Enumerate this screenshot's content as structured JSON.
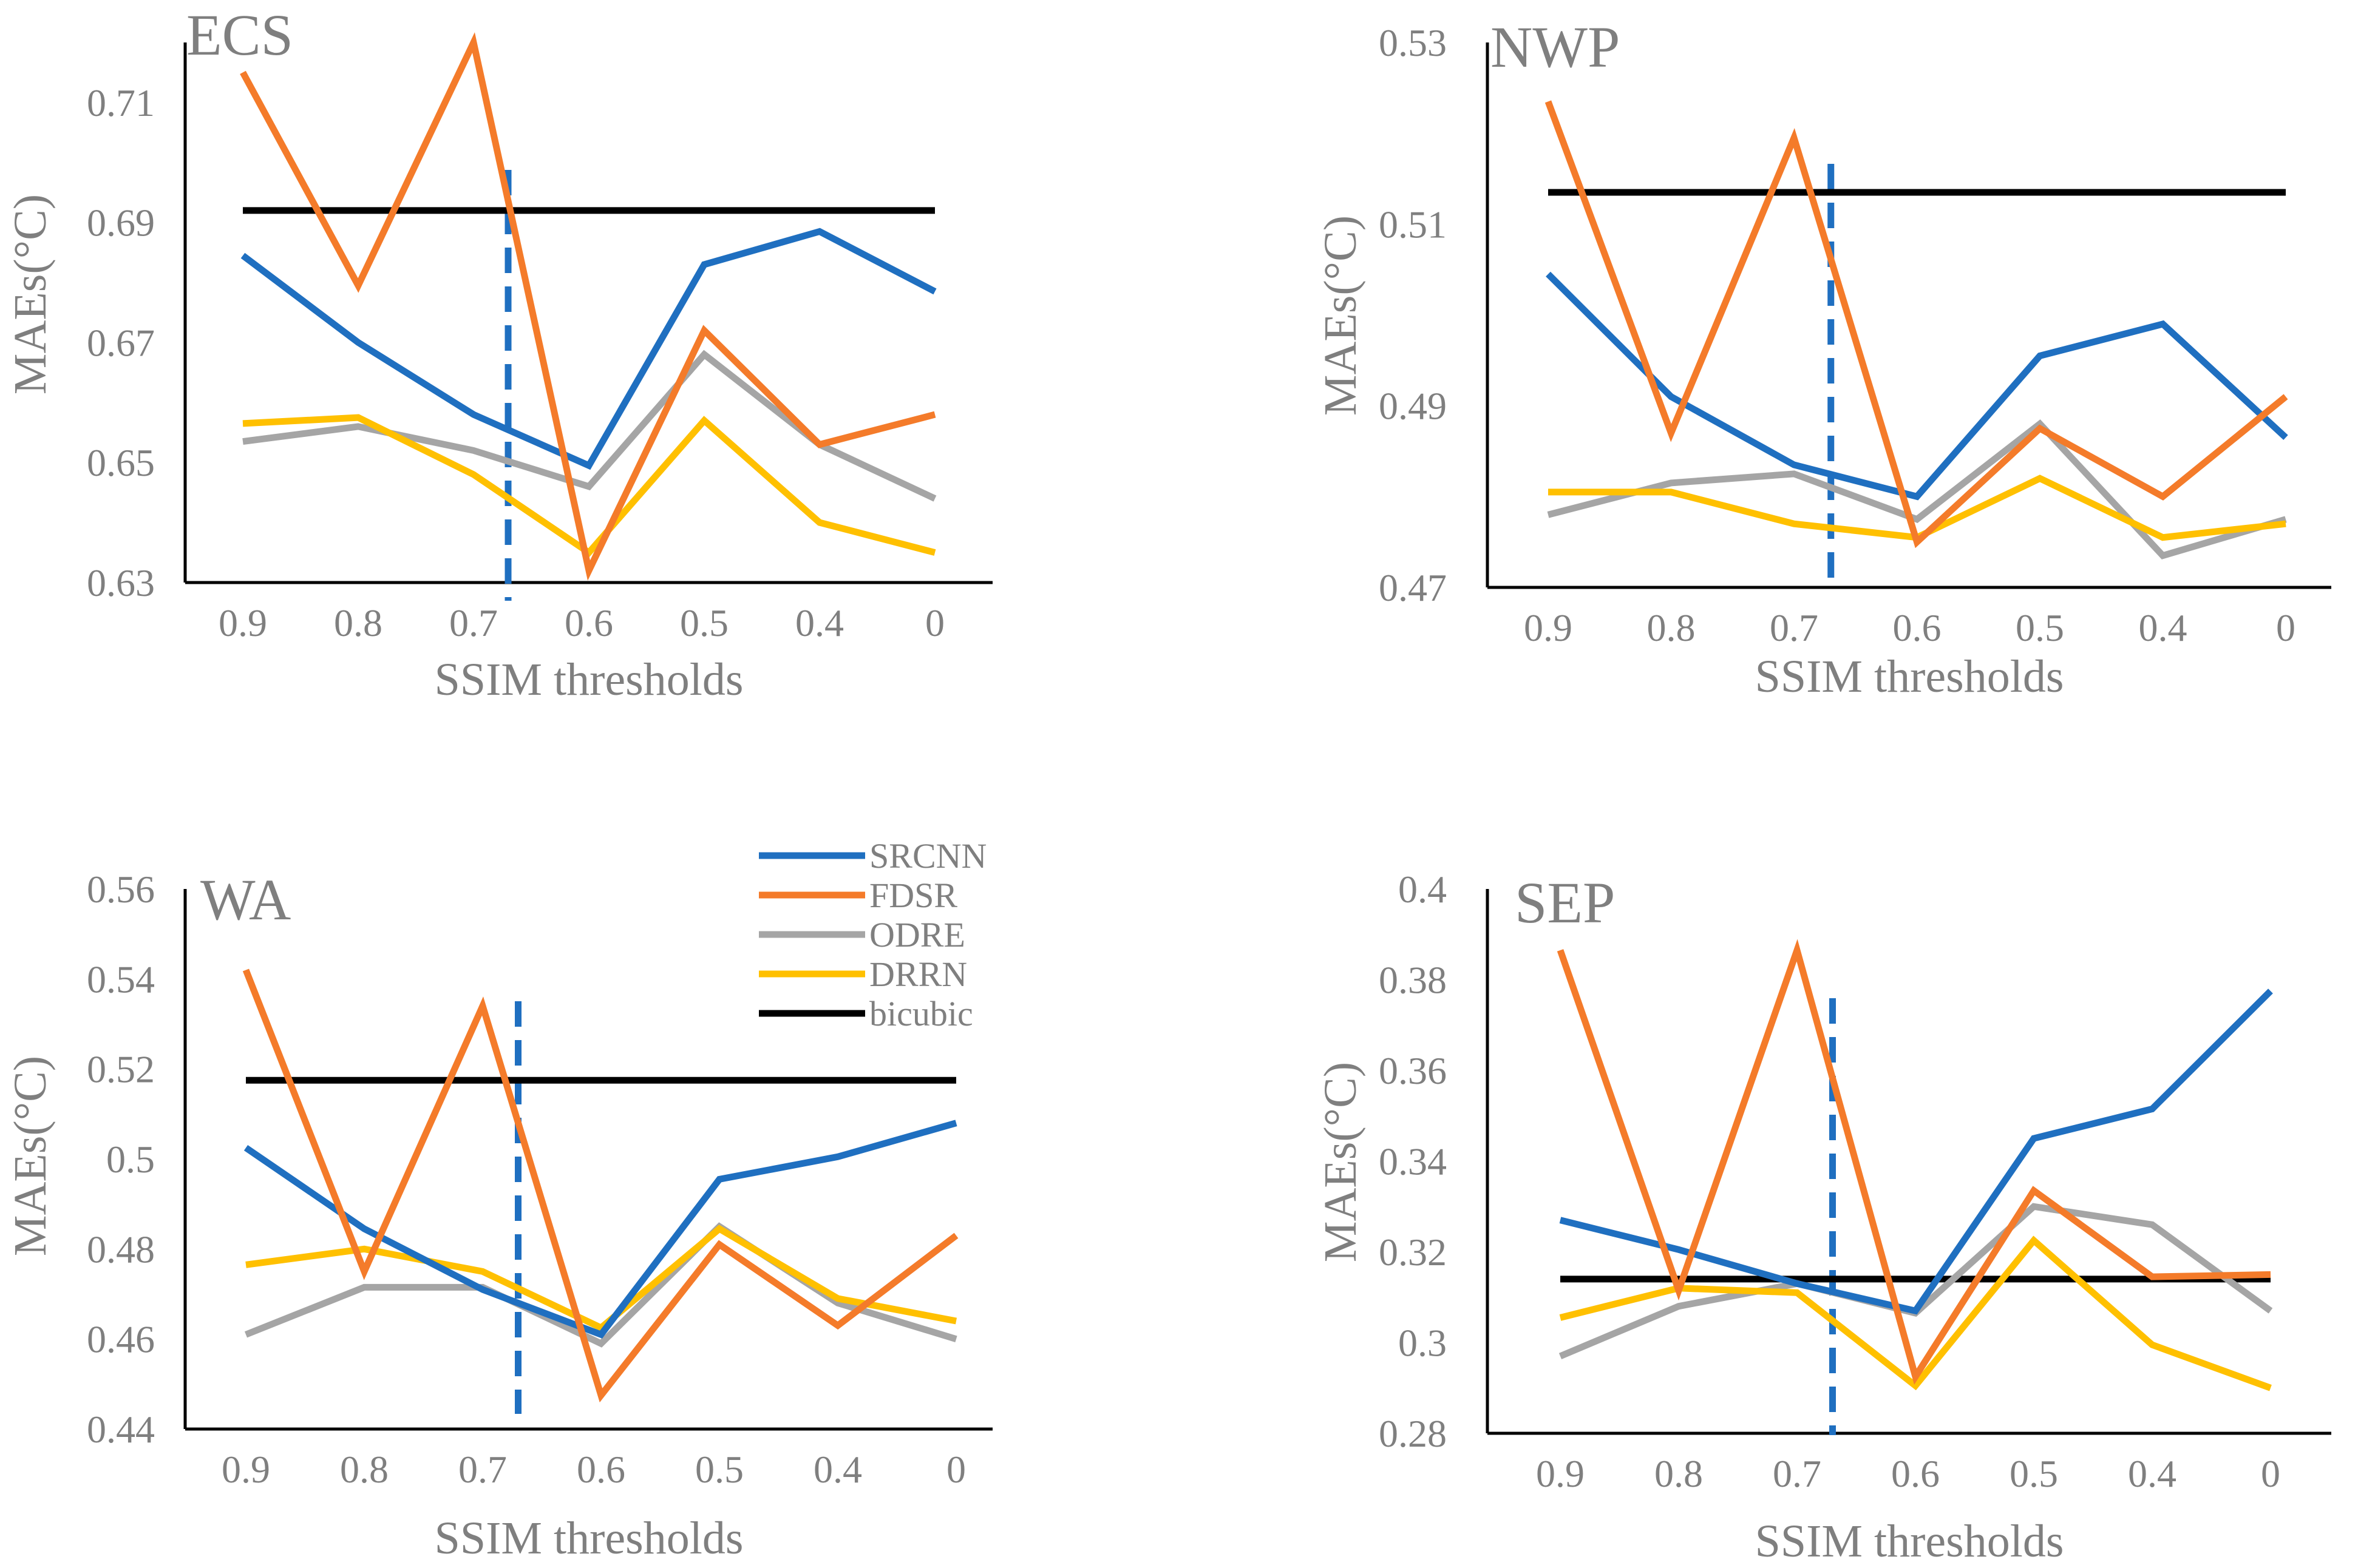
{
  "chart_data": [
    {
      "type": "line",
      "title": "ECS",
      "xlabel": "SSIM thresholds",
      "ylabel": "MAEs(°C)",
      "categories": [
        "0.9",
        "0.8",
        "0.7",
        "0.6",
        "0.5",
        "0.4",
        "0"
      ],
      "ylim": [
        0.63,
        0.72
      ],
      "yticks": [
        "0.63",
        "0.65",
        "0.67",
        "0.69",
        "0.71"
      ],
      "marker_x": 2.3,
      "series": [
        {
          "name": "SRCNN",
          "color": "#1f6fc0",
          "values": [
            0.6845,
            0.67,
            0.658,
            0.6495,
            0.683,
            0.6885,
            0.6785
          ]
        },
        {
          "name": "FDSR",
          "color": "#f47b2a",
          "values": [
            0.715,
            0.6795,
            0.72,
            0.632,
            0.672,
            0.653,
            0.658
          ]
        },
        {
          "name": "ODRE",
          "color": "#a5a5a5",
          "values": [
            0.6535,
            0.656,
            0.652,
            0.646,
            0.668,
            0.653,
            0.644
          ]
        },
        {
          "name": "DRRN",
          "color": "#ffc000",
          "values": [
            0.6565,
            0.6575,
            0.648,
            0.635,
            0.657,
            0.64,
            0.635
          ]
        },
        {
          "name": "bicubic",
          "color": "#000000",
          "values": [
            0.692,
            0.692,
            0.692,
            0.692,
            0.692,
            0.692,
            0.692
          ]
        }
      ]
    },
    {
      "type": "line",
      "title": "NWP",
      "xlabel": "SSIM thresholds",
      "ylabel": "MAEs(°C)",
      "categories": [
        "0.9",
        "0.8",
        "0.7",
        "0.6",
        "0.5",
        "0.4",
        "0"
      ],
      "ylim": [
        0.47,
        0.53
      ],
      "yticks": [
        "0.47",
        "0.49",
        "0.51",
        "0.53"
      ],
      "marker_x": 2.3,
      "series": [
        {
          "name": "SRCNN",
          "color": "#1f6fc0",
          "values": [
            0.5045,
            0.491,
            0.4835,
            0.48,
            0.4955,
            0.499,
            0.4865
          ]
        },
        {
          "name": "FDSR",
          "color": "#f47b2a",
          "values": [
            0.5235,
            0.487,
            0.5195,
            0.475,
            0.4875,
            0.48,
            0.491
          ]
        },
        {
          "name": "ODRE",
          "color": "#a5a5a5",
          "values": [
            0.478,
            0.4815,
            0.4825,
            0.4775,
            0.488,
            0.4735,
            0.4775
          ]
        },
        {
          "name": "DRRN",
          "color": "#ffc000",
          "values": [
            0.4805,
            0.4805,
            0.477,
            0.4755,
            0.482,
            0.4755,
            0.477
          ]
        },
        {
          "name": "bicubic",
          "color": "#000000",
          "values": [
            0.5135,
            0.5135,
            0.5135,
            0.5135,
            0.5135,
            0.5135,
            0.5135
          ]
        }
      ]
    },
    {
      "type": "line",
      "title": "WA",
      "xlabel": "SSIM thresholds",
      "ylabel": "MAEs(°C)",
      "categories": [
        "0.9",
        "0.8",
        "0.7",
        "0.6",
        "0.5",
        "0.4",
        "0"
      ],
      "ylim": [
        0.44,
        0.56
      ],
      "yticks": [
        "0.44",
        "0.46",
        "0.48",
        "0.5",
        "0.52",
        "0.54",
        "0.56"
      ],
      "marker_x": 2.3,
      "series": [
        {
          "name": "SRCNN",
          "color": "#1f6fc0",
          "values": [
            0.5025,
            0.4845,
            0.471,
            0.461,
            0.4955,
            0.5005,
            0.508
          ]
        },
        {
          "name": "FDSR",
          "color": "#f47b2a",
          "values": [
            0.542,
            0.475,
            0.534,
            0.4475,
            0.481,
            0.463,
            0.483
          ]
        },
        {
          "name": "ODRE",
          "color": "#a5a5a5",
          "values": [
            0.461,
            0.4715,
            0.4715,
            0.459,
            0.485,
            0.468,
            0.46
          ]
        },
        {
          "name": "DRRN",
          "color": "#ffc000",
          "values": [
            0.4765,
            0.48,
            0.475,
            0.4625,
            0.4845,
            0.469,
            0.464
          ]
        },
        {
          "name": "bicubic",
          "color": "#000000",
          "values": [
            0.5175,
            0.5175,
            0.5175,
            0.5175,
            0.5175,
            0.5175,
            0.5175
          ]
        }
      ]
    },
    {
      "type": "line",
      "title": "SEP",
      "xlabel": "SSIM thresholds",
      "ylabel": "MAEs(°C)",
      "categories": [
        "0.9",
        "0.8",
        "0.7",
        "0.6",
        "0.5",
        "0.4",
        "0"
      ],
      "ylim": [
        0.28,
        0.4
      ],
      "yticks": [
        "0.28",
        "0.3",
        "0.32",
        "0.34",
        "0.36",
        "0.38",
        "0.4"
      ],
      "marker_x": 2.3,
      "series": [
        {
          "name": "SRCNN",
          "color": "#1f6fc0",
          "values": [
            0.327,
            0.3205,
            0.313,
            0.307,
            0.345,
            0.3515,
            0.3775
          ]
        },
        {
          "name": "FDSR",
          "color": "#f47b2a",
          "values": [
            0.3865,
            0.3115,
            0.3865,
            0.2925,
            0.3335,
            0.3145,
            0.315
          ]
        },
        {
          "name": "ODRE",
          "color": "#a5a5a5",
          "values": [
            0.297,
            0.308,
            0.313,
            0.3065,
            0.33,
            0.326,
            0.307
          ]
        },
        {
          "name": "DRRN",
          "color": "#ffc000",
          "values": [
            0.3055,
            0.312,
            0.311,
            0.2905,
            0.3225,
            0.2995,
            0.29
          ]
        },
        {
          "name": "bicubic",
          "color": "#000000",
          "values": [
            0.314,
            0.314,
            0.314,
            0.314,
            0.314,
            0.314,
            0.314
          ]
        }
      ]
    }
  ],
  "legend": {
    "items": [
      {
        "name": "SRCNN",
        "color": "#1f6fc0"
      },
      {
        "name": "FDSR",
        "color": "#f47b2a"
      },
      {
        "name": "ODRE",
        "color": "#a5a5a5"
      },
      {
        "name": "DRRN",
        "color": "#ffc000"
      },
      {
        "name": "bicubic",
        "color": "#000000"
      }
    ]
  },
  "colors": {
    "axis": "#000000",
    "text": "#7f7f7f",
    "marker": "#1f6fc0"
  }
}
